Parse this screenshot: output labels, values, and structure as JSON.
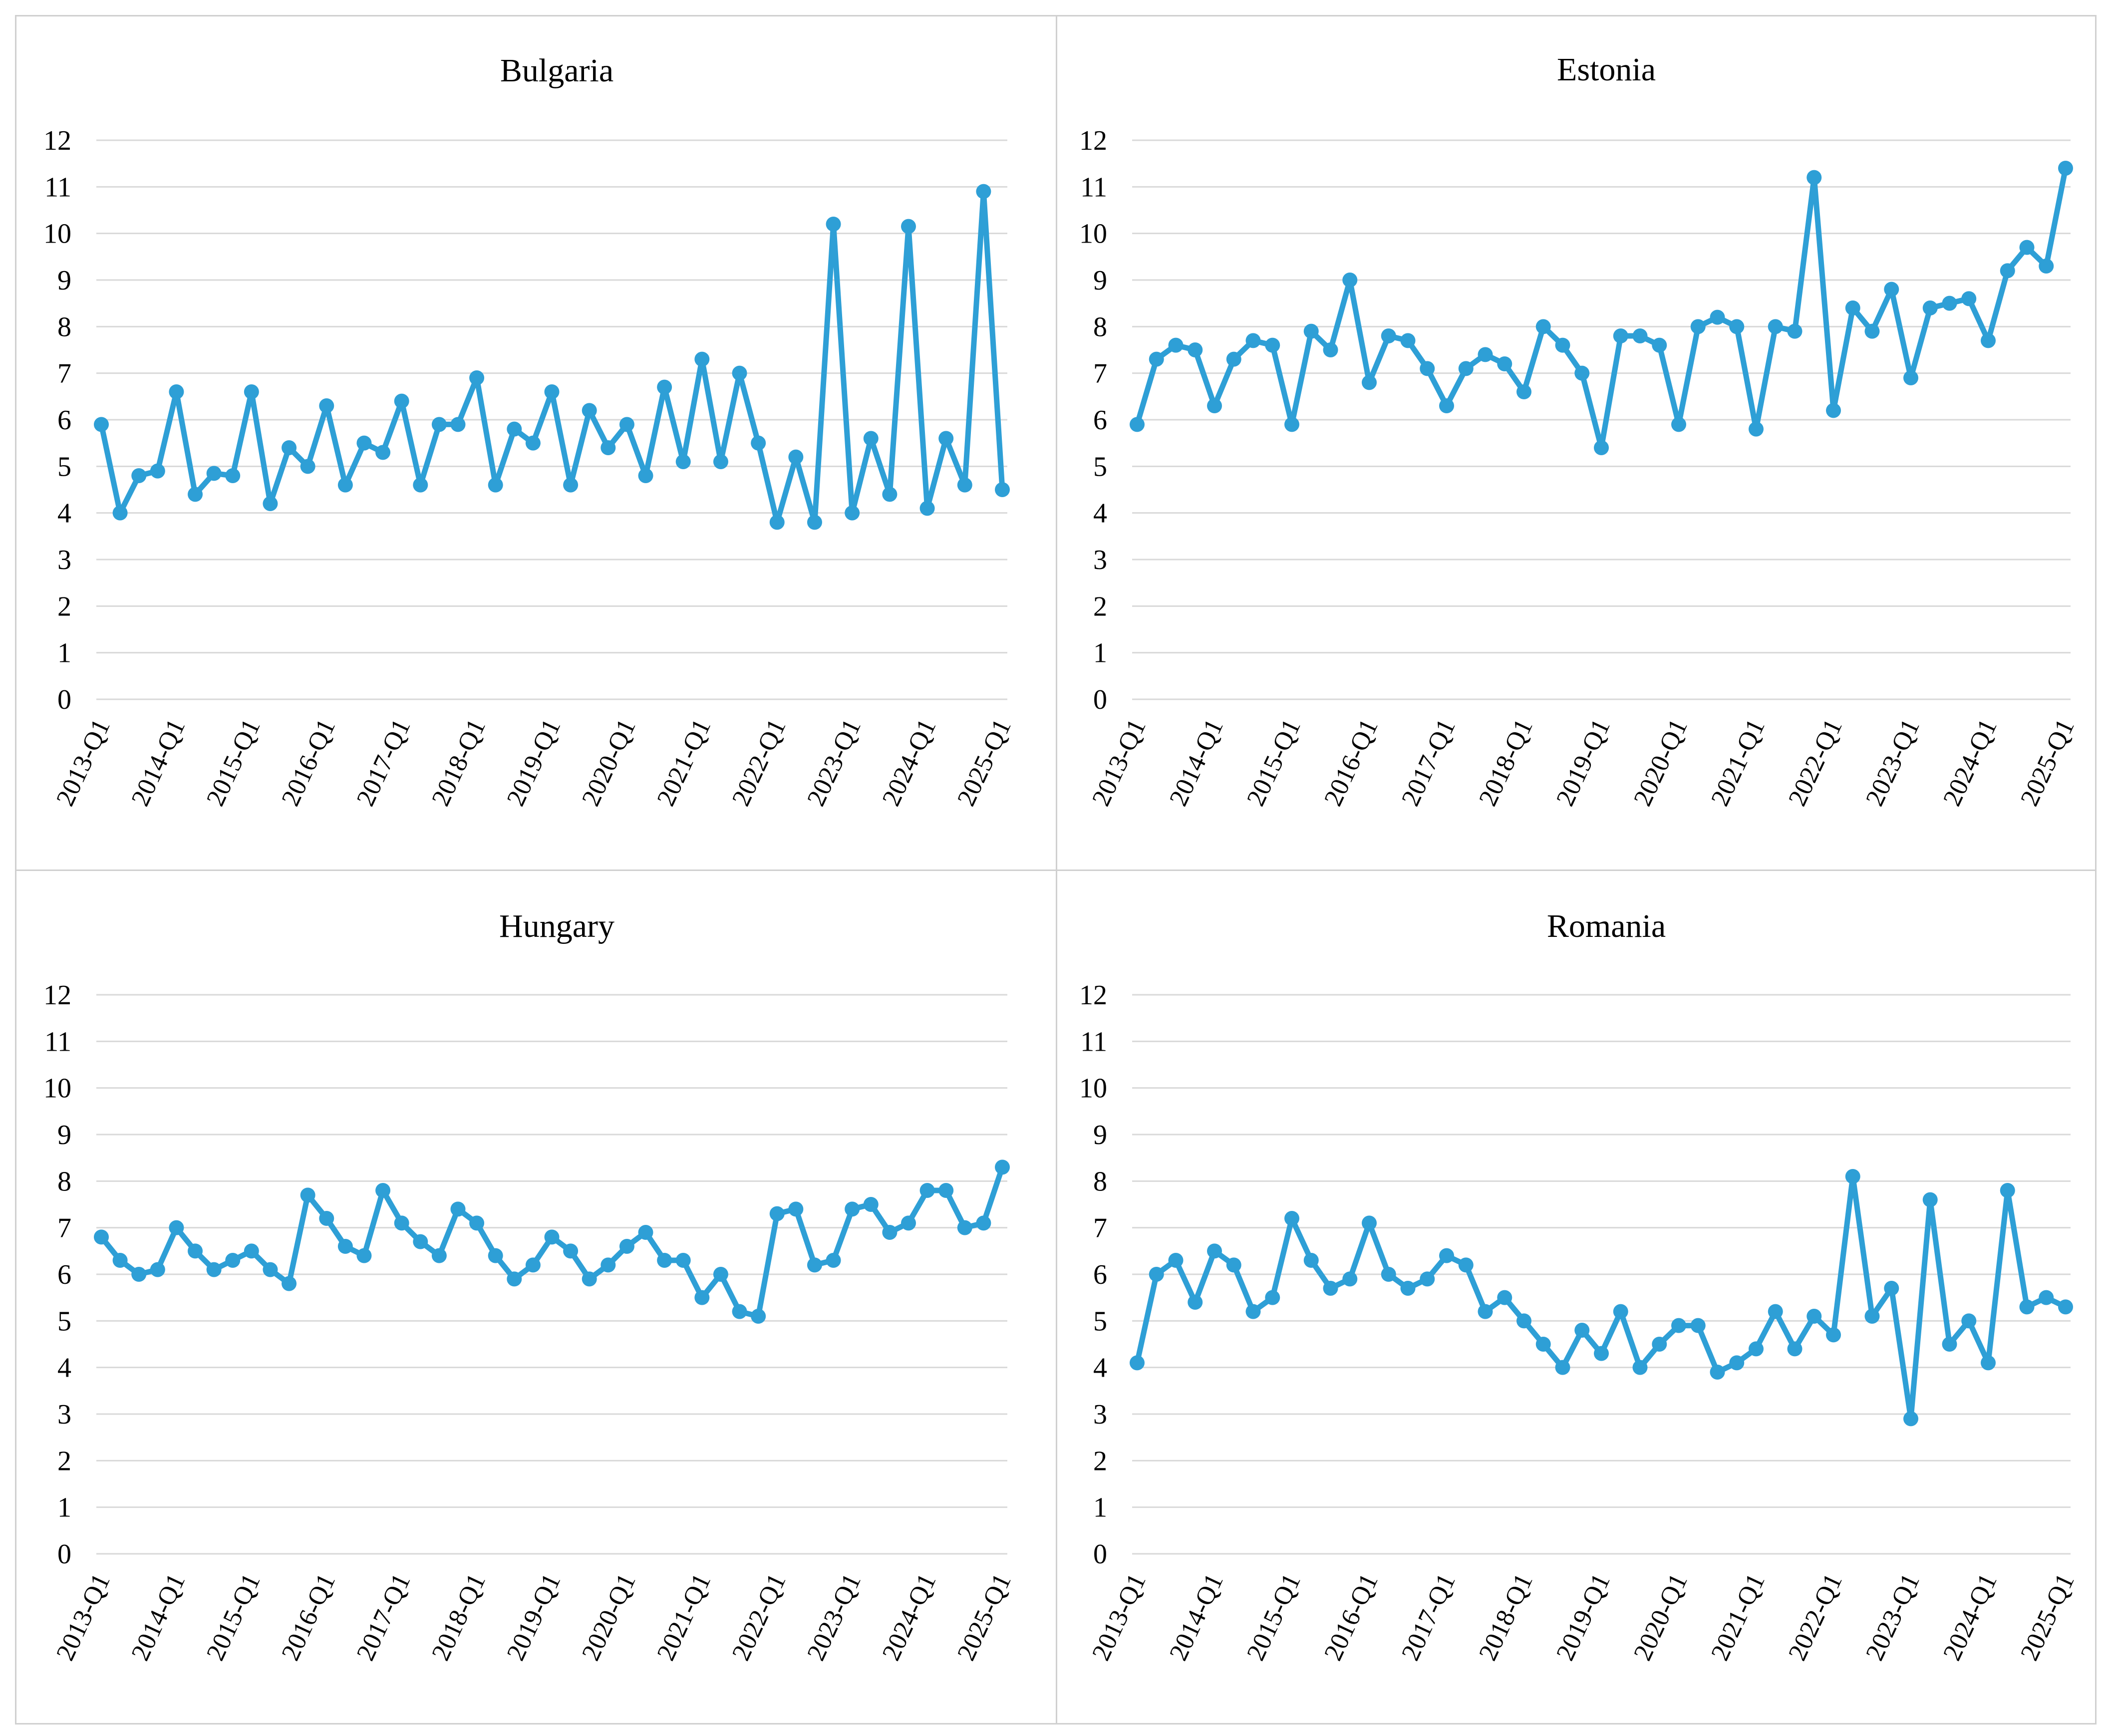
{
  "line_color": "#2e9fd6",
  "grid_color": "#d9d9d9",
  "chart_data": [
    {
      "type": "line",
      "title": "Bulgaria",
      "ylim": [
        0,
        12
      ],
      "yticks": [
        0,
        1,
        2,
        3,
        4,
        5,
        6,
        7,
        8,
        9,
        10,
        11,
        12
      ],
      "xlabels": [
        "2013-Q1",
        "2014-Q1",
        "2015-Q1",
        "2016-Q1",
        "2017-Q1",
        "2018-Q1",
        "2019-Q1",
        "2020-Q1",
        "2021-Q1",
        "2022-Q1",
        "2023-Q1",
        "2024-Q1",
        "2025-Q1"
      ],
      "grid": true,
      "values": [
        5.9,
        4.0,
        4.8,
        4.9,
        6.6,
        4.4,
        4.85,
        4.8,
        6.6,
        4.2,
        5.4,
        5.0,
        6.3,
        4.6,
        5.5,
        5.3,
        6.4,
        4.6,
        5.9,
        5.9,
        6.9,
        4.6,
        5.8,
        5.5,
        6.6,
        4.6,
        6.2,
        5.4,
        5.9,
        4.8,
        6.7,
        5.1,
        7.3,
        5.1,
        7.0,
        5.5,
        3.8,
        5.2,
        3.8,
        10.2,
        4.0,
        5.6,
        4.4,
        10.15,
        4.1,
        5.6,
        4.6,
        10.9,
        4.5
      ]
    },
    {
      "type": "line",
      "title": "Estonia",
      "ylim": [
        0,
        12
      ],
      "yticks": [
        0,
        1,
        2,
        3,
        4,
        5,
        6,
        7,
        8,
        9,
        10,
        11,
        12
      ],
      "xlabels": [
        "2013-Q1",
        "2014-Q1",
        "2015-Q1",
        "2016-Q1",
        "2017-Q1",
        "2018-Q1",
        "2019-Q1",
        "2020-Q1",
        "2021-Q1",
        "2022-Q1",
        "2023-Q1",
        "2024-Q1",
        "2025-Q1"
      ],
      "grid": true,
      "values": [
        5.9,
        7.3,
        7.6,
        7.5,
        6.3,
        7.3,
        7.7,
        7.6,
        5.9,
        7.9,
        7.5,
        9.0,
        6.8,
        7.8,
        7.7,
        7.1,
        6.3,
        7.1,
        7.4,
        7.2,
        6.6,
        8.0,
        7.6,
        7.0,
        5.4,
        7.8,
        7.8,
        7.6,
        5.9,
        8.0,
        8.2,
        8.0,
        5.8,
        8.0,
        7.9,
        11.2,
        6.2,
        8.4,
        7.9,
        8.8,
        6.9,
        8.4,
        8.5,
        8.6,
        7.7,
        9.2,
        9.7,
        9.3,
        11.4
      ]
    },
    {
      "type": "line",
      "title": "Hungary",
      "ylim": [
        0,
        12
      ],
      "yticks": [
        0,
        1,
        2,
        3,
        4,
        5,
        6,
        7,
        8,
        9,
        10,
        11,
        12
      ],
      "xlabels": [
        "2013-Q1",
        "2014-Q1",
        "2015-Q1",
        "2016-Q1",
        "2017-Q1",
        "2018-Q1",
        "2019-Q1",
        "2020-Q1",
        "2021-Q1",
        "2022-Q1",
        "2023-Q1",
        "2024-Q1",
        "2025-Q1"
      ],
      "grid": true,
      "values": [
        6.8,
        6.3,
        6.0,
        6.1,
        7.0,
        6.5,
        6.1,
        6.3,
        6.5,
        6.1,
        5.8,
        7.7,
        7.2,
        6.6,
        6.4,
        7.8,
        7.1,
        6.7,
        6.4,
        7.4,
        7.1,
        6.4,
        5.9,
        6.2,
        6.8,
        6.5,
        5.9,
        6.2,
        6.6,
        6.9,
        6.3,
        6.3,
        5.5,
        6.0,
        5.2,
        5.1,
        7.3,
        7.4,
        6.2,
        6.3,
        7.4,
        7.5,
        6.9,
        7.1,
        7.8,
        7.8,
        7.0,
        7.1,
        8.3
      ]
    },
    {
      "type": "line",
      "title": "Romania",
      "ylim": [
        0,
        12
      ],
      "yticks": [
        0,
        1,
        2,
        3,
        4,
        5,
        6,
        7,
        8,
        9,
        10,
        11,
        12
      ],
      "xlabels": [
        "2013-Q1",
        "2014-Q1",
        "2015-Q1",
        "2016-Q1",
        "2017-Q1",
        "2018-Q1",
        "2019-Q1",
        "2020-Q1",
        "2021-Q1",
        "2022-Q1",
        "2023-Q1",
        "2024-Q1",
        "2025-Q1"
      ],
      "grid": true,
      "values": [
        4.1,
        6.0,
        6.3,
        5.4,
        6.5,
        6.2,
        5.2,
        5.5,
        7.2,
        6.3,
        5.7,
        5.9,
        7.1,
        6.0,
        5.7,
        5.9,
        6.4,
        6.2,
        5.2,
        5.5,
        5.0,
        4.5,
        4.0,
        4.8,
        4.3,
        5.2,
        4.0,
        4.5,
        4.9,
        4.9,
        3.9,
        4.1,
        4.4,
        5.2,
        4.4,
        5.1,
        4.7,
        8.1,
        5.1,
        5.7,
        2.9,
        7.6,
        4.5,
        5.0,
        4.1,
        7.8,
        5.3,
        5.5,
        5.3
      ]
    }
  ]
}
